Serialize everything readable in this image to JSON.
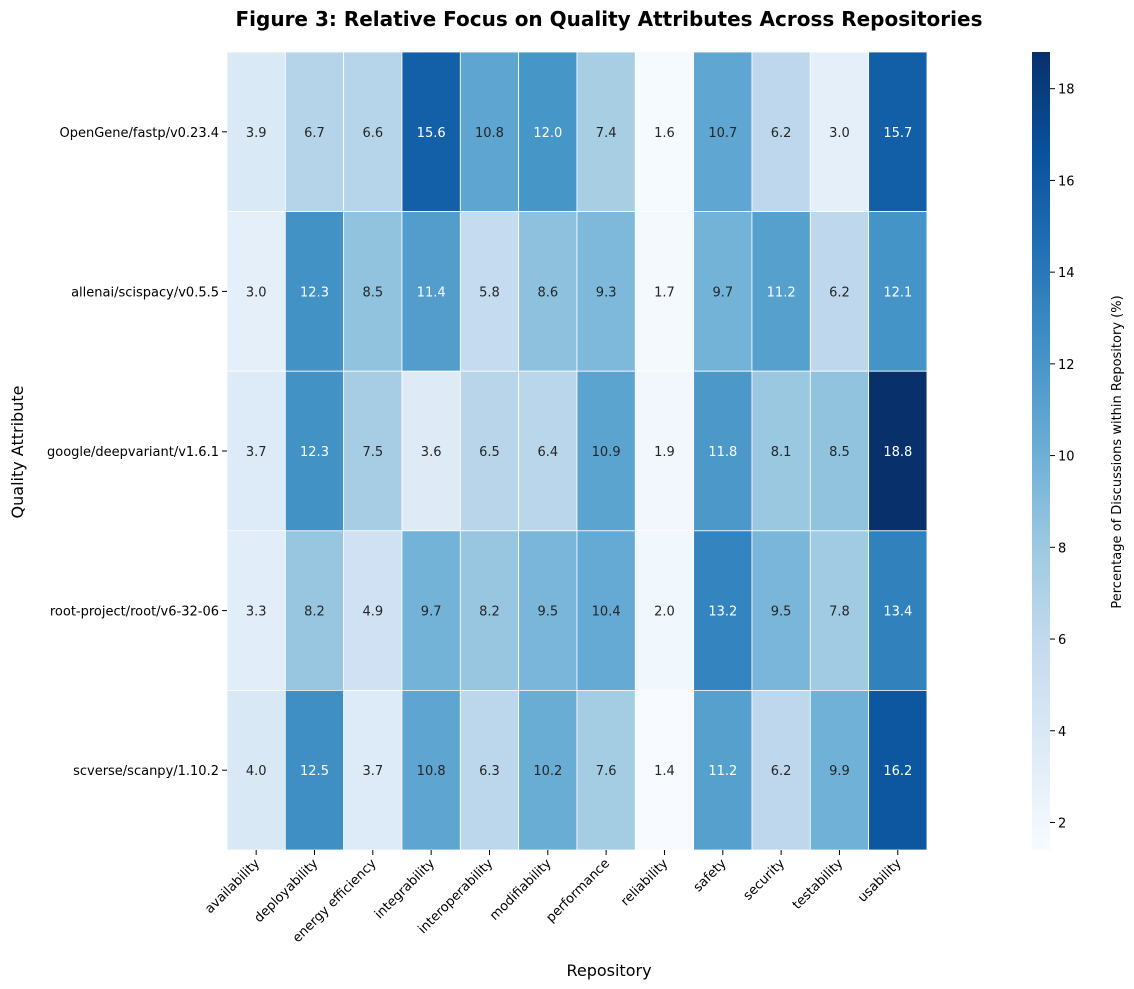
{
  "chart_data": {
    "type": "heatmap",
    "title": "Figure 3: Relative Focus on Quality Attributes Across Repositories",
    "xlabel": "Repository",
    "ylabel": "Quality Attribute",
    "colorbar_label": "Percentage of Discussions within Repository (%)",
    "colormap": "Blues",
    "vmin": 1.4,
    "vmax": 18.8,
    "colorbar_ticks": [
      2,
      4,
      6,
      8,
      10,
      12,
      14,
      16,
      18
    ],
    "x_categories": [
      "availability",
      "deployability",
      "energy efficiency",
      "integrability",
      "interoperability",
      "modifiability",
      "performance",
      "reliability",
      "safety",
      "security",
      "testability",
      "usability"
    ],
    "y_categories": [
      "OpenGene/fastp/v0.23.4",
      "allenai/scispacy/v0.5.5",
      "google/deepvariant/v1.6.1",
      "root-project/root/v6-32-06",
      "scverse/scanpy/1.10.2"
    ],
    "values": [
      [
        3.9,
        6.7,
        6.6,
        15.6,
        10.8,
        12.0,
        7.4,
        1.6,
        10.7,
        6.2,
        3.0,
        15.7
      ],
      [
        3.0,
        12.3,
        8.5,
        11.4,
        5.8,
        8.6,
        9.3,
        1.7,
        9.7,
        11.2,
        6.2,
        12.1
      ],
      [
        3.7,
        12.3,
        7.5,
        3.6,
        6.5,
        6.4,
        10.9,
        1.9,
        11.8,
        8.1,
        8.5,
        18.8
      ],
      [
        3.3,
        8.2,
        4.9,
        9.7,
        8.2,
        9.5,
        10.4,
        2.0,
        13.2,
        9.5,
        7.8,
        13.4
      ],
      [
        4.0,
        12.5,
        3.7,
        10.8,
        6.3,
        10.2,
        7.6,
        1.4,
        11.2,
        6.2,
        9.9,
        16.2
      ]
    ],
    "value_format": "one decimal",
    "cell_annotations": true,
    "grid_lines": "white"
  }
}
